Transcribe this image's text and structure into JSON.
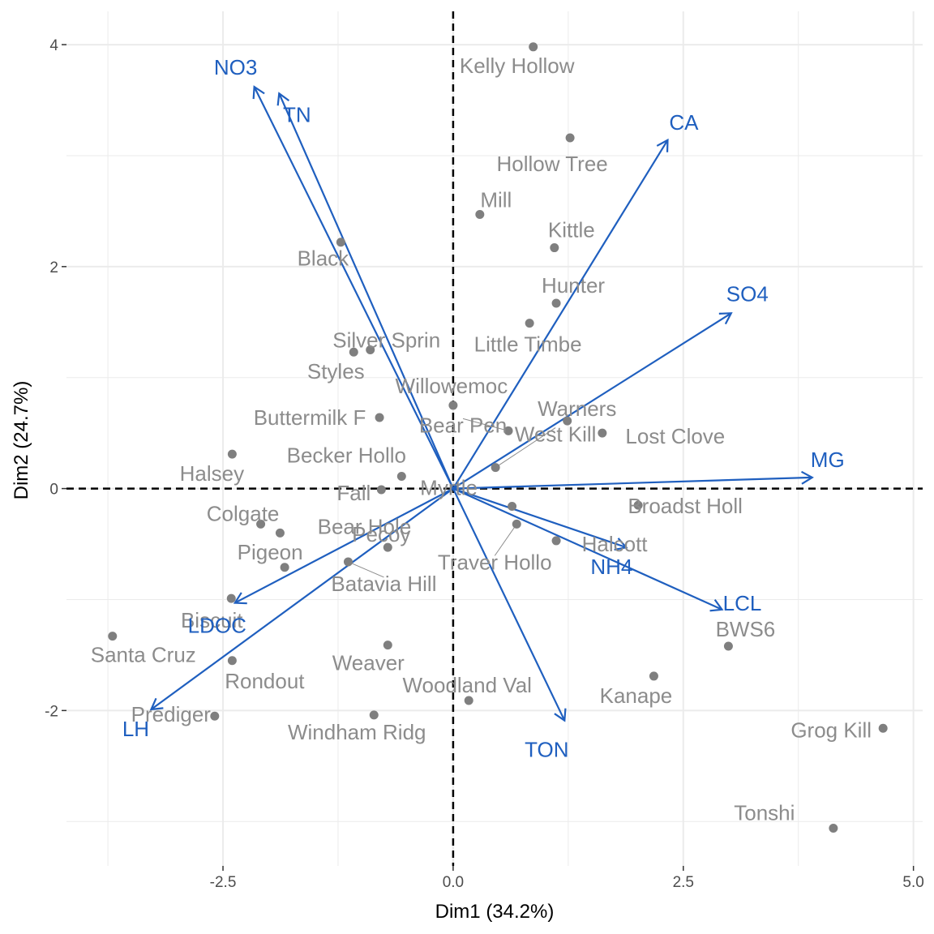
{
  "chart_data": {
    "type": "scatter",
    "subtype": "pca-biplot",
    "xlabel": "Dim1 (34.2%)",
    "ylabel": "Dim2 (24.7%)",
    "xlim": [
      -4.2,
      5.1
    ],
    "ylim": [
      -3.4,
      4.3
    ],
    "x_ticks": [
      -2.5,
      0.0,
      2.5,
      5.0
    ],
    "x_tick_labels": [
      "-2.5",
      "0.0",
      "2.5",
      "5.0"
    ],
    "y_ticks": [
      -2,
      0,
      2,
      4
    ],
    "y_tick_labels": [
      "-2",
      "0",
      "2",
      "4"
    ],
    "grid": true,
    "zero_lines": "dashed",
    "colors": {
      "points": "#7f7f7f",
      "point_labels": "#8c8c8c",
      "variables": "#1f5fbf",
      "grid": "#ebebeb"
    },
    "points": [
      {
        "label": "Kelly Hollow",
        "x": 0.87,
        "y": 3.98
      },
      {
        "label": "Hollow Tree",
        "x": 1.27,
        "y": 3.16
      },
      {
        "label": "Mill",
        "x": 0.29,
        "y": 2.47
      },
      {
        "label": "Kittle",
        "x": 1.1,
        "y": 2.17
      },
      {
        "label": "Black",
        "x": -1.22,
        "y": 2.22
      },
      {
        "label": "Hunter",
        "x": 1.12,
        "y": 1.67
      },
      {
        "label": "Little Timbe",
        "x": 0.83,
        "y": 1.49
      },
      {
        "label": "Silver Sprin",
        "x": -0.9,
        "y": 1.25
      },
      {
        "label": "Styles",
        "x": -1.08,
        "y": 1.23
      },
      {
        "label": "Willowemoc",
        "x": 0.0,
        "y": 0.75
      },
      {
        "label": "Warners",
        "x": 1.24,
        "y": 0.61
      },
      {
        "label": "Lost Clove",
        "x": 1.62,
        "y": 0.5
      },
      {
        "label": "Buttermilk F",
        "x": -0.8,
        "y": 0.64
      },
      {
        "label": "Bear Pen",
        "x": 0.6,
        "y": 0.52
      },
      {
        "label": "West Kill",
        "x": 0.46,
        "y": 0.19
      },
      {
        "label": "Halsey",
        "x": -2.4,
        "y": 0.31
      },
      {
        "label": "Becker Hollo",
        "x": -0.56,
        "y": 0.11
      },
      {
        "label": "Fall",
        "x": -0.78,
        "y": -0.01
      },
      {
        "label": "Myrtle",
        "x": 0.64,
        "y": -0.16
      },
      {
        "label": "Broadst Holl",
        "x": 2.01,
        "y": -0.15
      },
      {
        "label": "Colgate",
        "x": -2.09,
        "y": -0.32
      },
      {
        "label": "Bear Hole",
        "x": -1.88,
        "y": -0.4
      },
      {
        "label": "Traver Hollo",
        "x": 0.69,
        "y": -0.32
      },
      {
        "label": "Halcott",
        "x": 1.12,
        "y": -0.47
      },
      {
        "label": "Pecoy",
        "x": -0.71,
        "y": -0.53
      },
      {
        "label": "Batavia Hill",
        "x": -1.14,
        "y": -0.66
      },
      {
        "label": "Pigeon",
        "x": -1.83,
        "y": -0.71
      },
      {
        "label": "Biscuit",
        "x": -2.41,
        "y": -0.99
      },
      {
        "label": "Santa Cruz",
        "x": -3.7,
        "y": -1.33
      },
      {
        "label": "Rondout",
        "x": -2.4,
        "y": -1.55
      },
      {
        "label": "Weaver",
        "x": -0.71,
        "y": -1.41
      },
      {
        "label": "BWS6",
        "x": 2.99,
        "y": -1.42
      },
      {
        "label": "Kanape",
        "x": 2.18,
        "y": -1.69
      },
      {
        "label": "Woodland Val",
        "x": 0.17,
        "y": -1.91
      },
      {
        "label": "Prediger",
        "x": -2.59,
        "y": -2.05
      },
      {
        "label": "Windham Ridg",
        "x": -0.86,
        "y": -2.04
      },
      {
        "label": "Grog Kill",
        "x": 4.67,
        "y": -2.16
      },
      {
        "label": "Tonshi",
        "x": 4.13,
        "y": -3.06
      }
    ],
    "variables": [
      {
        "label": "NO3",
        "x": -2.16,
        "y": 3.62
      },
      {
        "label": "TN",
        "x": -1.89,
        "y": 3.56
      },
      {
        "label": "CA",
        "x": 2.33,
        "y": 3.14
      },
      {
        "label": "SO4",
        "x": 3.02,
        "y": 1.58
      },
      {
        "label": "MG",
        "x": 3.9,
        "y": 0.1
      },
      {
        "label": "NH4",
        "x": 1.88,
        "y": -0.53
      },
      {
        "label": "LCL",
        "x": 2.92,
        "y": -1.09
      },
      {
        "label": "TON",
        "x": 1.21,
        "y": -2.09
      },
      {
        "label": "LDOC",
        "x": -2.37,
        "y": -1.03
      },
      {
        "label": "LH",
        "x": -3.28,
        "y": -1.99
      }
    ]
  }
}
